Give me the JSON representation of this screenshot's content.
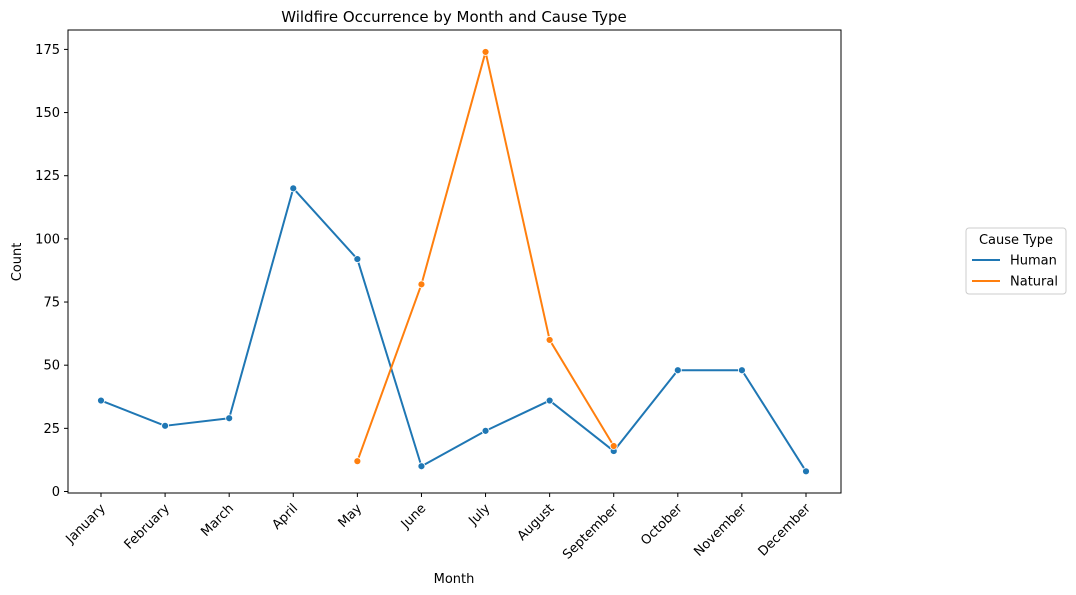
{
  "chart_data": {
    "type": "line",
    "title": "Wildfire Occurrence by Month and Cause Type",
    "xlabel": "Month",
    "ylabel": "Count",
    "categories": [
      "January",
      "February",
      "March",
      "April",
      "May",
      "June",
      "July",
      "August",
      "September",
      "October",
      "November",
      "December"
    ],
    "ylim": [
      0,
      180
    ],
    "yticks": [
      0,
      25,
      50,
      75,
      100,
      125,
      150,
      175
    ],
    "grid": false,
    "legend": {
      "title": "Cause Type",
      "placement": "right"
    },
    "series": [
      {
        "name": "Human",
        "color": "#1f77b4",
        "values": [
          36,
          26,
          29,
          120,
          92,
          10,
          24,
          36,
          16,
          48,
          48,
          8
        ]
      },
      {
        "name": "Natural",
        "color": "#ff7f0e",
        "values": [
          null,
          null,
          null,
          null,
          12,
          82,
          174,
          60,
          18,
          null,
          null,
          null
        ]
      }
    ]
  }
}
